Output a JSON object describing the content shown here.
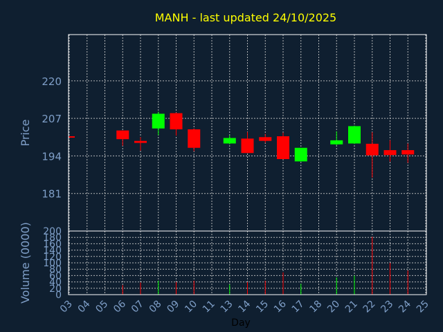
{
  "chart_data": {
    "type": "candlestick",
    "title": "MANH - last updated 24/10/2025",
    "colors": {
      "background": "#0f1f30",
      "title": "#ffff00",
      "axis_text": "#7f9fc8",
      "grid": "#c8c8c8",
      "up": "#00ff00",
      "down": "#ff0000",
      "x_label": "#000000"
    },
    "grid": true,
    "price_panel": {
      "ylabel": "Price",
      "ylim": [
        168,
        236
      ],
      "y_ticks": [
        181,
        194,
        207,
        220
      ]
    },
    "volume_panel": {
      "ylabel": "Volume (0000)",
      "ylim": [
        0,
        200
      ],
      "y_ticks": [
        0,
        20,
        40,
        60,
        80,
        100,
        120,
        140,
        160,
        180,
        200
      ]
    },
    "xlabel": "Day",
    "x_ticks": [
      "03",
      "04",
      "05",
      "06",
      "07",
      "08",
      "09",
      "10",
      "11",
      "13",
      "14",
      "15",
      "16",
      "17",
      "18",
      "20",
      "21",
      "22",
      "23",
      "24",
      "25"
    ],
    "candles": [
      {
        "x": "03",
        "open": 200.8,
        "high": 200.8,
        "low": 200.4,
        "close": 200.4,
        "volume": 0
      },
      {
        "x": "06",
        "open": 202.8,
        "high": 202.8,
        "low": 197.5,
        "close": 199.8,
        "volume": 30
      },
      {
        "x": "07",
        "open": 199.2,
        "high": 200.5,
        "low": 195.8,
        "close": 198.5,
        "volume": 38
      },
      {
        "x": "08",
        "open": 203.5,
        "high": 209.3,
        "low": 201.2,
        "close": 208.6,
        "volume": 44
      },
      {
        "x": "09",
        "open": 208.8,
        "high": 209.0,
        "low": 201.0,
        "close": 203.2,
        "volume": 40
      },
      {
        "x": "10",
        "open": 203.2,
        "high": 203.5,
        "low": 195.6,
        "close": 196.8,
        "volume": 44
      },
      {
        "x": "13",
        "open": 198.3,
        "high": 201.2,
        "low": 198.0,
        "close": 200.2,
        "volume": 32
      },
      {
        "x": "14",
        "open": 200.0,
        "high": 202.3,
        "low": 195.0,
        "close": 195.0,
        "volume": 40
      },
      {
        "x": "15",
        "open": 200.5,
        "high": 201.6,
        "low": 198.5,
        "close": 199.2,
        "volume": 44
      },
      {
        "x": "16",
        "open": 200.8,
        "high": 202.1,
        "low": 192.8,
        "close": 192.9,
        "volume": 70
      },
      {
        "x": "17",
        "open": 192.1,
        "high": 196.8,
        "low": 192.0,
        "close": 196.8,
        "volume": 34
      },
      {
        "x": "20",
        "open": 198.0,
        "high": 202.5,
        "low": 197.7,
        "close": 199.4,
        "volume": 54
      },
      {
        "x": "21",
        "open": 198.3,
        "high": 204.5,
        "low": 198.1,
        "close": 204.3,
        "volume": 60
      },
      {
        "x": "22",
        "open": 198.2,
        "high": 202.2,
        "low": 186.5,
        "close": 194.2,
        "volume": 182
      },
      {
        "x": "23",
        "open": 196.0,
        "high": 199.5,
        "low": 192.0,
        "close": 194.3,
        "volume": 100
      },
      {
        "x": "24",
        "open": 196.0,
        "high": 198.3,
        "low": 191.6,
        "close": 194.5,
        "volume": 76
      }
    ]
  }
}
